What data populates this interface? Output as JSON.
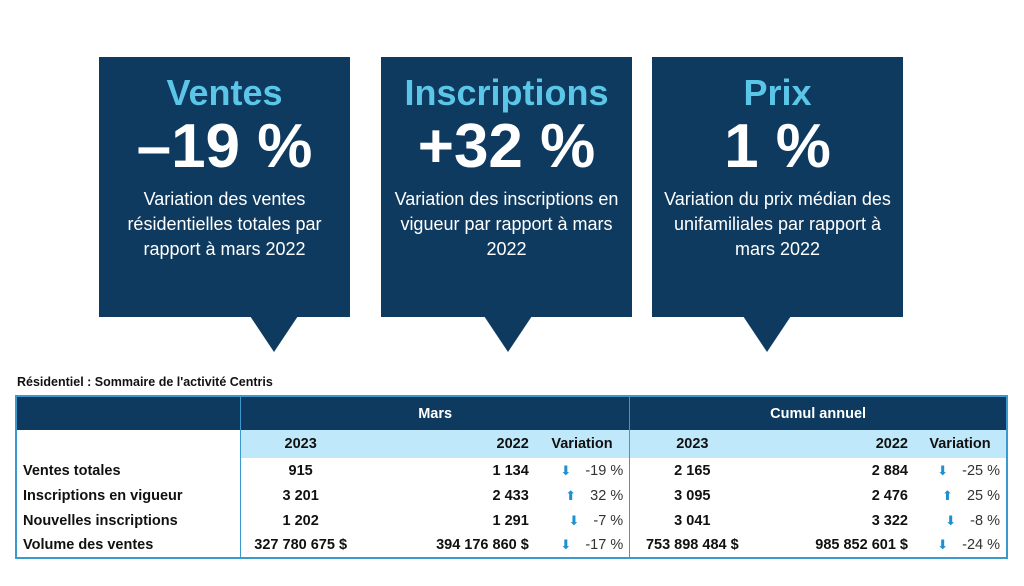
{
  "cards": [
    {
      "title": "Ventes",
      "value": "–19 %",
      "desc": "Variation des ventes résidentielles totales par rapport à mars 2022"
    },
    {
      "title": "Inscriptions",
      "value": "+32 %",
      "desc": "Variation des inscriptions en vigueur par rapport à mars 2022"
    },
    {
      "title": "Prix",
      "value": "1 %",
      "desc": "Variation du prix médian des unifamiliales par rapport à mars 2022"
    }
  ],
  "table": {
    "caption": "Résidentiel : Sommaire de l'activité Centris",
    "groups": [
      "Mars",
      "Cumul annuel"
    ],
    "columns": [
      "2023",
      "2022",
      "Variation",
      "2023",
      "2022",
      "Variation"
    ],
    "rows": [
      {
        "label": "Ventes totales",
        "m23": "915",
        "m22": "1 134",
        "mdir": "down",
        "mvar": "-19 %",
        "c23": "2 165",
        "c22": "2 884",
        "cdir": "down",
        "cvar": "-25 %"
      },
      {
        "label": "Inscriptions en vigueur",
        "m23": "3 201",
        "m22": "2 433",
        "mdir": "up",
        "mvar": "32 %",
        "c23": "3 095",
        "c22": "2 476",
        "cdir": "up",
        "cvar": "25 %"
      },
      {
        "label": "Nouvelles inscriptions",
        "m23": "1 202",
        "m22": "1 291",
        "mdir": "down",
        "mvar": "-7 %",
        "c23": "3 041",
        "c22": "3 322",
        "cdir": "down",
        "cvar": "-8 %"
      },
      {
        "label": "Volume des ventes",
        "m23": "327 780 675  $",
        "m22": "394 176 860  $",
        "mdir": "down",
        "mvar": "-17 %",
        "c23": "753 898 484  $",
        "c22": "985 852 601  $",
        "cdir": "down",
        "cvar": "-24 %"
      }
    ]
  },
  "colors": {
    "navy": "#0f3a5f",
    "cyan": "#5bc6e8",
    "header_light": "#bfe8fa",
    "arrow": "#1e8fcf"
  }
}
